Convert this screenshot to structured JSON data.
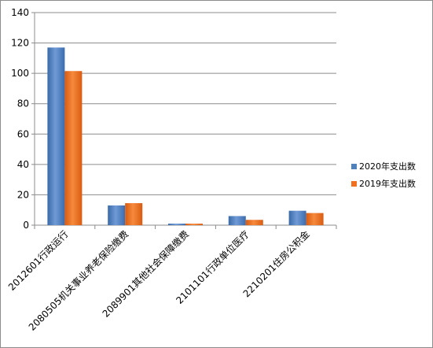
{
  "chart_data": {
    "type": "bar",
    "categories": [
      "2012601行政运行",
      "2080505机关事业养老保险缴费",
      "2089901其他社会保障缴费",
      "2101101行政单位医疗",
      "2210201住房公积金"
    ],
    "series": [
      {
        "name": "2020年支出数",
        "values": [
          117,
          13,
          1,
          6,
          9.5
        ],
        "color": "#4f81bd"
      },
      {
        "name": "2019年支出数",
        "values": [
          101.5,
          14.5,
          1,
          3.5,
          8
        ],
        "color": "#f07020"
      }
    ],
    "ylim": [
      0,
      140
    ],
    "yticks": [
      0,
      20,
      40,
      60,
      80,
      100,
      120,
      140
    ],
    "grid": true,
    "legend_position": "right"
  }
}
